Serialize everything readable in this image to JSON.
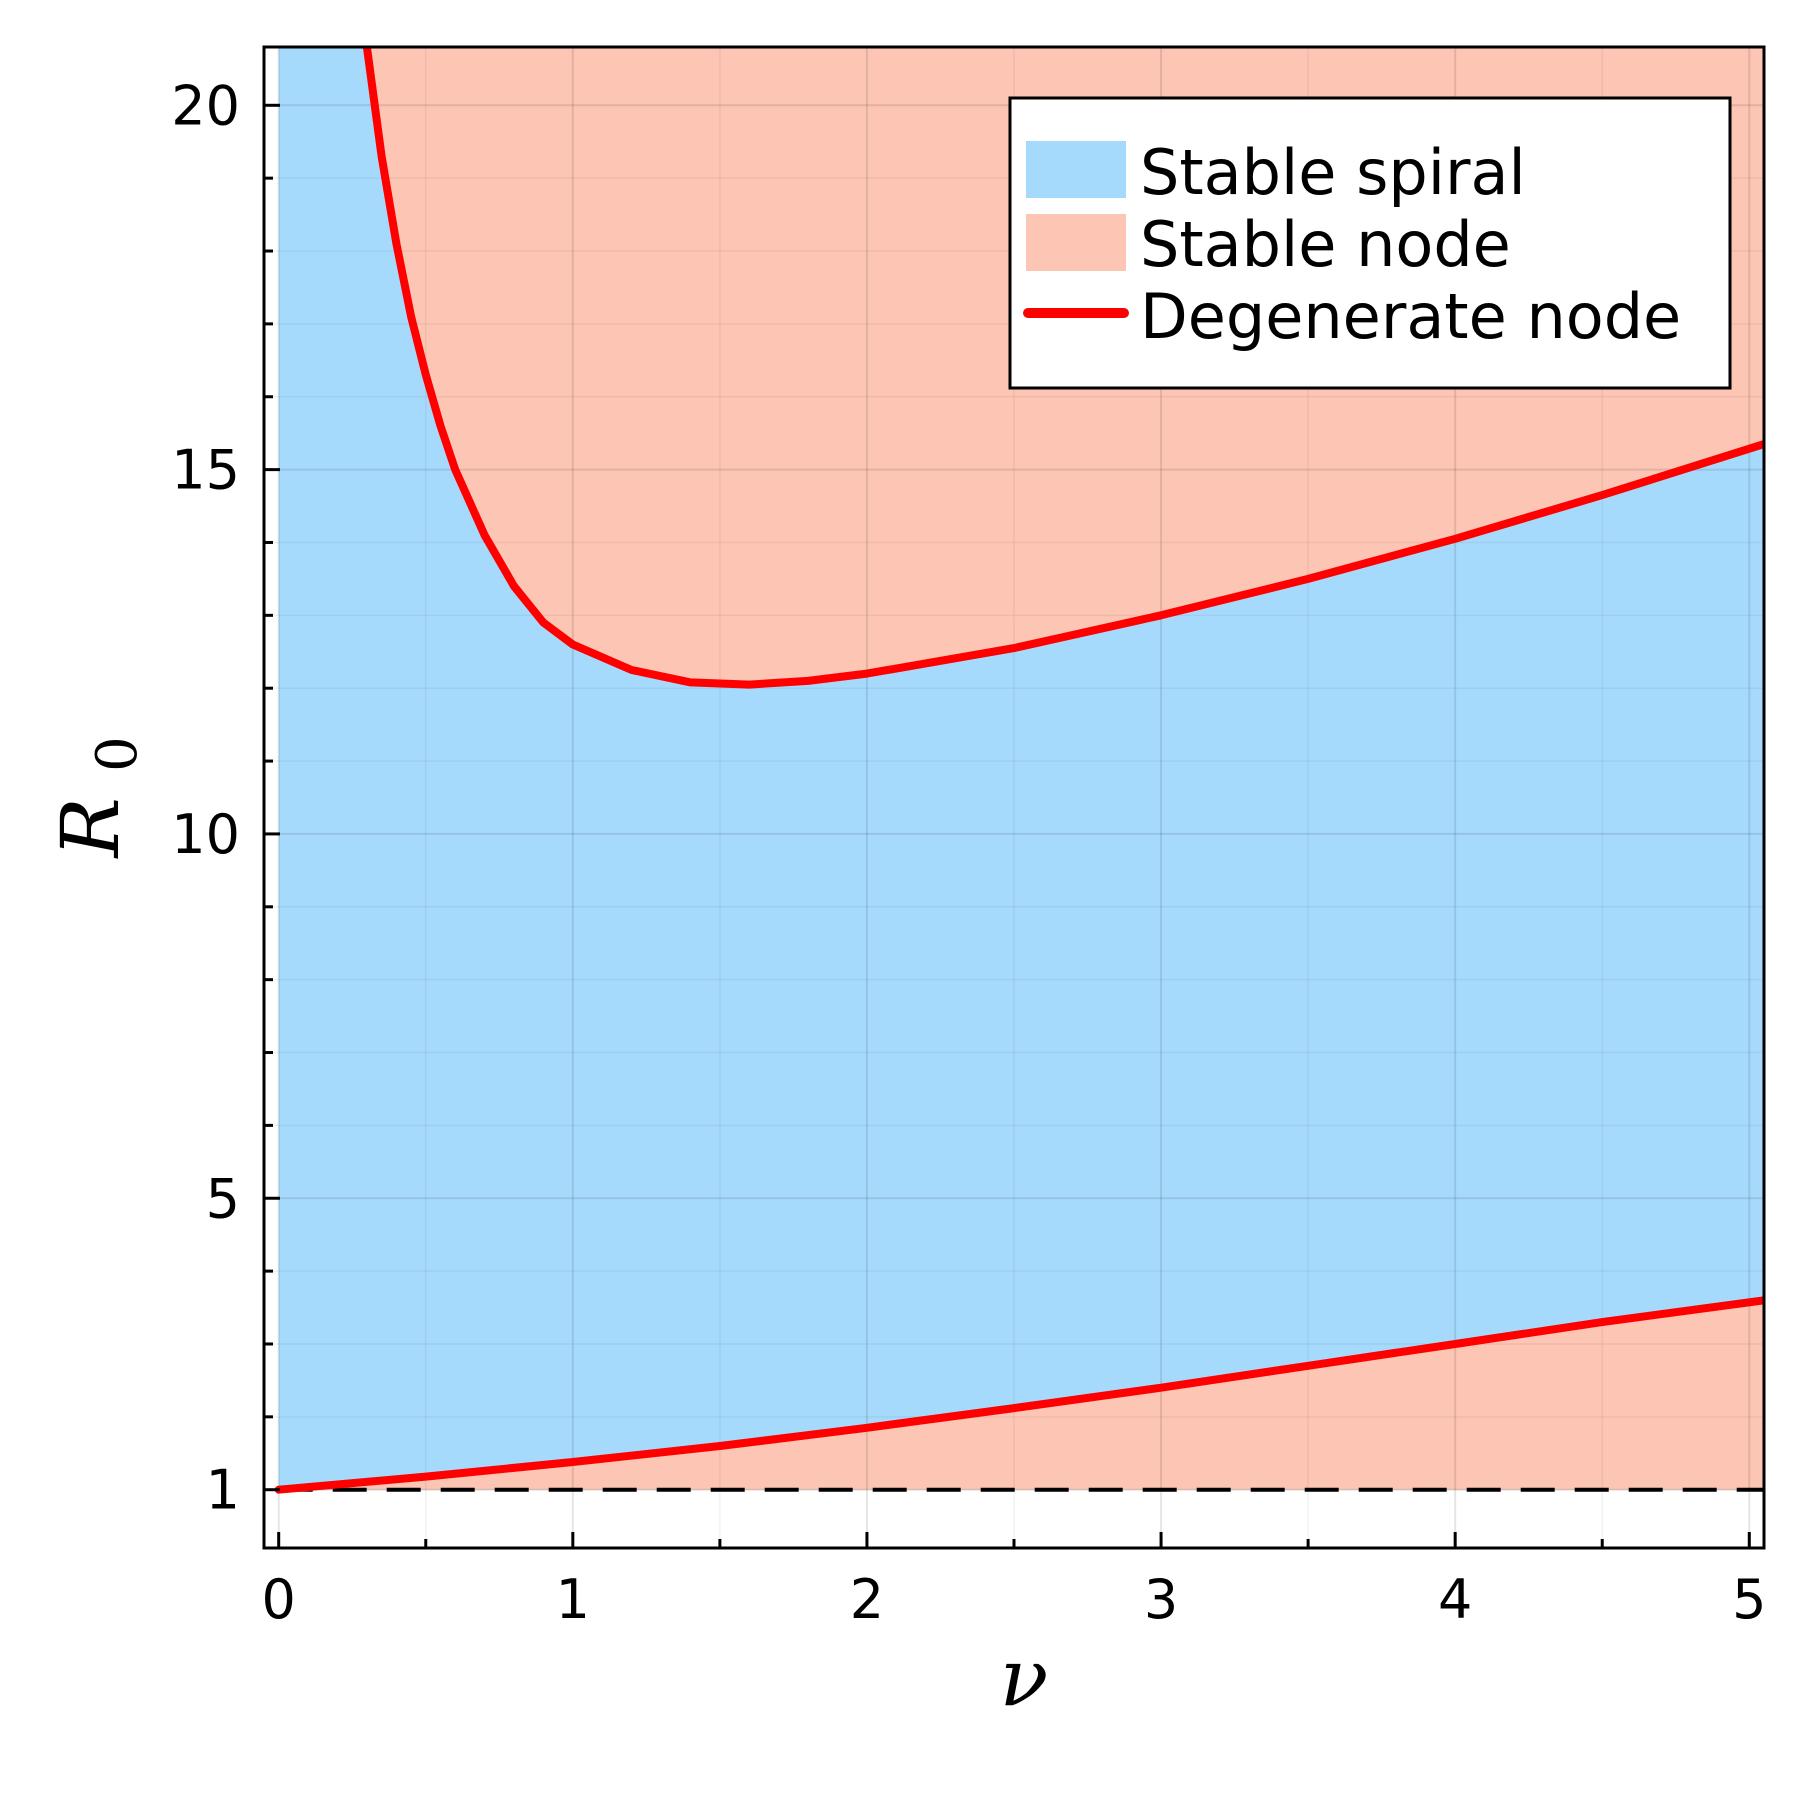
{
  "chart_data": {
    "type": "area",
    "title": "",
    "xlabel": "ν",
    "ylabel_main": "R",
    "ylabel_sub": "0",
    "xlim": [
      -0.05,
      5.05
    ],
    "ylim": [
      0.2,
      20.8
    ],
    "x_ticks": [
      0,
      1,
      2,
      3,
      4,
      5
    ],
    "x_tick_labels": [
      "0",
      "1",
      "2",
      "3",
      "4",
      "5"
    ],
    "x_minor_ticks": [
      0.5,
      1.5,
      2.5,
      3.5,
      4.5
    ],
    "y_ticks": [
      1,
      5,
      10,
      15,
      20
    ],
    "y_tick_labels": [
      "1",
      "5",
      "10",
      "15",
      "20"
    ],
    "y_minor_ticks": [
      2,
      3,
      4,
      6,
      7,
      8,
      9,
      11,
      12,
      13,
      14,
      16,
      17,
      18,
      19
    ],
    "grid": true,
    "legend_position": "top-right",
    "colors": {
      "spiral": "#a6dafc",
      "node": "#fcc5b4",
      "degenerate": "#ff0000",
      "baseline": "#000000"
    },
    "series": [
      {
        "name": "Stable spiral",
        "kind": "fill"
      },
      {
        "name": "Stable node",
        "kind": "fill"
      },
      {
        "name": "Degenerate node",
        "kind": "line",
        "segments": [
          {
            "x": [
              0.3,
              0.35,
              0.4,
              0.45,
              0.5,
              0.55,
              0.6,
              0.7,
              0.8,
              0.9,
              1.0,
              1.2,
              1.4,
              1.6,
              1.8,
              2.0,
              2.5,
              3.0,
              3.5,
              4.0,
              4.5,
              5.05
            ],
            "y": [
              20.8,
              19.3,
              18.1,
              17.1,
              16.3,
              15.6,
              15.0,
              14.1,
              13.4,
              12.9,
              12.6,
              12.25,
              12.08,
              12.05,
              12.1,
              12.2,
              12.55,
              13.0,
              13.5,
              14.05,
              14.65,
              15.35
            ]
          },
          {
            "x": [
              0.0,
              0.5,
              1.0,
              1.5,
              2.0,
              2.5,
              3.0,
              3.5,
              4.0,
              4.5,
              5.05
            ],
            "y": [
              1.0,
              1.18,
              1.38,
              1.6,
              1.85,
              2.12,
              2.4,
              2.7,
              3.0,
              3.3,
              3.6
            ]
          }
        ]
      },
      {
        "name": "R0 = 1",
        "kind": "hline",
        "y": 1,
        "dashed": true
      }
    ]
  }
}
